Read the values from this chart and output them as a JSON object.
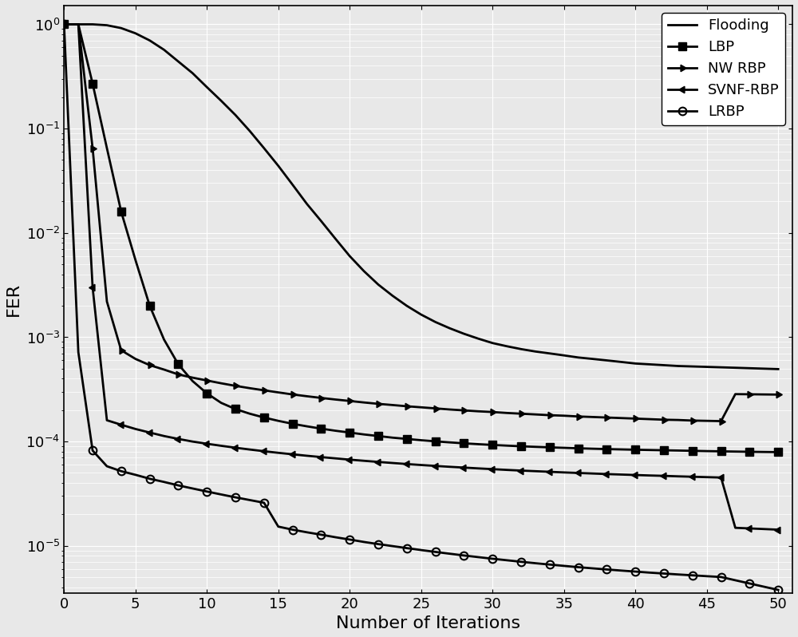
{
  "xlabel": "Number of Iterations",
  "ylabel": "FER",
  "x_ticks": [
    0,
    5,
    10,
    15,
    20,
    25,
    30,
    35,
    40,
    45,
    50
  ],
  "series": [
    {
      "label": "Flooding",
      "marker": "none",
      "markevery": 1,
      "x": [
        0,
        1,
        2,
        3,
        4,
        5,
        6,
        7,
        8,
        9,
        10,
        11,
        12,
        13,
        14,
        15,
        16,
        17,
        18,
        19,
        20,
        21,
        22,
        23,
        24,
        25,
        26,
        27,
        28,
        29,
        30,
        31,
        32,
        33,
        34,
        35,
        36,
        37,
        38,
        39,
        40,
        41,
        42,
        43,
        44,
        45,
        46,
        47,
        48,
        49,
        50
      ],
      "y": [
        1.0,
        1.0,
        1.0,
        0.98,
        0.92,
        0.82,
        0.7,
        0.57,
        0.44,
        0.34,
        0.25,
        0.185,
        0.135,
        0.095,
        0.065,
        0.044,
        0.029,
        0.019,
        0.013,
        0.0088,
        0.006,
        0.0043,
        0.0032,
        0.0025,
        0.002,
        0.00165,
        0.0014,
        0.00122,
        0.00108,
        0.00097,
        0.00088,
        0.00082,
        0.00077,
        0.00073,
        0.0007,
        0.00067,
        0.00064,
        0.00062,
        0.0006,
        0.00058,
        0.00056,
        0.00055,
        0.00054,
        0.00053,
        0.000525,
        0.00052,
        0.000515,
        0.00051,
        0.000505,
        0.0005,
        0.000495
      ]
    },
    {
      "label": "LBP",
      "marker": "s",
      "markevery": 2,
      "x": [
        0,
        1,
        2,
        3,
        4,
        5,
        6,
        7,
        8,
        9,
        10,
        11,
        12,
        13,
        14,
        15,
        16,
        17,
        18,
        19,
        20,
        21,
        22,
        23,
        24,
        25,
        26,
        27,
        28,
        29,
        30,
        31,
        32,
        33,
        34,
        35,
        36,
        37,
        38,
        39,
        40,
        41,
        42,
        43,
        44,
        45,
        46,
        47,
        48,
        49,
        50
      ],
      "y": [
        1.0,
        1.0,
        0.27,
        0.065,
        0.016,
        0.0055,
        0.002,
        0.00095,
        0.00055,
        0.00038,
        0.00029,
        0.000235,
        0.000205,
        0.000185,
        0.00017,
        0.000158,
        0.000148,
        0.00014,
        0.000133,
        0.000127,
        0.000122,
        0.000117,
        0.000113,
        0.000109,
        0.000106,
        0.000103,
        0.0001005,
        9.82e-05,
        9.62e-05,
        9.44e-05,
        9.28e-05,
        9.14e-05,
        9.01e-05,
        8.9e-05,
        8.8e-05,
        8.71e-05,
        8.62e-05,
        8.54e-05,
        8.47e-05,
        8.41e-05,
        8.35e-05,
        8.3e-05,
        8.25e-05,
        8.2e-05,
        8.15e-05,
        8.1e-05,
        8.06e-05,
        8.02e-05,
        7.98e-05,
        7.95e-05,
        7.92e-05
      ]
    },
    {
      "label": "NW RBP",
      "marker": "right_triangle",
      "markevery": 2,
      "x": [
        0,
        1,
        2,
        3,
        4,
        5,
        6,
        7,
        8,
        9,
        10,
        11,
        12,
        13,
        14,
        15,
        16,
        17,
        18,
        19,
        20,
        21,
        22,
        23,
        24,
        25,
        26,
        27,
        28,
        29,
        30,
        31,
        32,
        33,
        34,
        35,
        36,
        37,
        38,
        39,
        40,
        41,
        42,
        43,
        44,
        45,
        46,
        47,
        48,
        49,
        50
      ],
      "y": [
        1.0,
        1.0,
        0.065,
        0.0022,
        0.00075,
        0.00062,
        0.00054,
        0.00049,
        0.00044,
        0.00041,
        0.000385,
        0.000362,
        0.000342,
        0.000325,
        0.00031,
        0.000296,
        0.000283,
        0.000272,
        0.000262,
        0.000253,
        0.000245,
        0.000237,
        0.00023,
        0.000224,
        0.000218,
        0.000213,
        0.000208,
        0.000203,
        0.000199,
        0.000195,
        0.000192,
        0.000188,
        0.000185,
        0.000182,
        0.000179,
        0.000177,
        0.000174,
        0.000172,
        0.00017,
        0.000168,
        0.000166,
        0.000164,
        0.000162,
        0.000161,
        0.000159,
        0.000158,
        0.000157,
        0.000285,
        0.000284,
        0.000283,
        0.000282
      ]
    },
    {
      "label": "SVNF-RBP",
      "marker": "left_triangle",
      "markevery": 2,
      "x": [
        0,
        1,
        2,
        3,
        4,
        5,
        6,
        7,
        8,
        9,
        10,
        11,
        12,
        13,
        14,
        15,
        16,
        17,
        18,
        19,
        20,
        21,
        22,
        23,
        24,
        25,
        26,
        27,
        28,
        29,
        30,
        31,
        32,
        33,
        34,
        35,
        36,
        37,
        38,
        39,
        40,
        41,
        42,
        43,
        44,
        45,
        46,
        47,
        48,
        49,
        50
      ],
      "y": [
        1.0,
        1.0,
        0.003,
        0.00016,
        0.000145,
        0.000132,
        0.000122,
        0.000113,
        0.000106,
        0.0001,
        9.53e-05,
        9.11e-05,
        8.73e-05,
        8.39e-05,
        8.08e-05,
        7.8e-05,
        7.55e-05,
        7.31e-05,
        7.1e-05,
        6.9e-05,
        6.71e-05,
        6.54e-05,
        6.38e-05,
        6.23e-05,
        6.09e-05,
        5.96e-05,
        5.84e-05,
        5.73e-05,
        5.63e-05,
        5.53e-05,
        5.44e-05,
        5.35e-05,
        5.27e-05,
        5.2e-05,
        5.13e-05,
        5.06e-05,
        5e-05,
        4.94e-05,
        4.88e-05,
        4.83e-05,
        4.78e-05,
        4.73e-05,
        4.69e-05,
        4.64e-05,
        4.6e-05,
        4.56e-05,
        4.52e-05,
        1.49e-05,
        1.47e-05,
        1.45e-05,
        1.43e-05
      ]
    },
    {
      "label": "LRBP",
      "marker": "o",
      "markevery": 2,
      "x": [
        0,
        1,
        2,
        3,
        4,
        5,
        6,
        7,
        8,
        9,
        10,
        11,
        12,
        13,
        14,
        15,
        16,
        17,
        18,
        19,
        20,
        21,
        22,
        23,
        24,
        25,
        26,
        27,
        28,
        29,
        30,
        31,
        32,
        33,
        34,
        35,
        36,
        37,
        38,
        39,
        40,
        41,
        42,
        43,
        44,
        45,
        46,
        47,
        48,
        49,
        50
      ],
      "y": [
        1.0,
        0.00072,
        8.2e-05,
        5.8e-05,
        5.2e-05,
        4.8e-05,
        4.4e-05,
        4.1e-05,
        3.8e-05,
        3.55e-05,
        3.32e-05,
        3.11e-05,
        2.92e-05,
        2.75e-05,
        2.59e-05,
        1.53e-05,
        1.43e-05,
        1.35e-05,
        1.28e-05,
        1.21e-05,
        1.15e-05,
        1.09e-05,
        1.04e-05,
        9.95e-06,
        9.52e-06,
        9.12e-06,
        8.75e-06,
        8.41e-06,
        8.09e-06,
        7.8e-06,
        7.53e-06,
        7.28e-06,
        7.04e-06,
        6.82e-06,
        6.62e-06,
        6.43e-06,
        6.25e-06,
        6.09e-06,
        5.94e-06,
        5.8e-06,
        5.67e-06,
        5.54e-06,
        5.43e-06,
        5.32e-06,
        5.22e-06,
        5.12e-06,
        5.03e-06,
        4.68e-06,
        4.36e-06,
        4.06e-06,
        3.785e-06
      ]
    }
  ],
  "color": "#000000",
  "linewidth": 2.0,
  "markersize": 7,
  "legend_loc": "upper right",
  "legend_fontsize": 13,
  "bg_color": "#e8e8e8",
  "grid_color": "#ffffff"
}
